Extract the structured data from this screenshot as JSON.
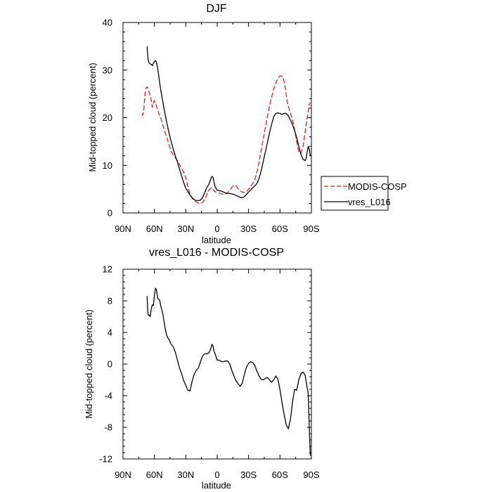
{
  "chart_data": [
    {
      "type": "line",
      "title": "DJF",
      "xlabel": "latitude",
      "ylabel": "Mid-topped cloud (percent)",
      "xlim": [
        90,
        -90
      ],
      "ylim": [
        0,
        40
      ],
      "xticks": [
        90,
        60,
        30,
        0,
        -30,
        -60,
        -90
      ],
      "xtick_labels": [
        "90N",
        "60N",
        "30N",
        "0",
        "30S",
        "60S",
        "90S"
      ],
      "yticks": [
        0,
        10,
        20,
        30,
        40
      ],
      "ytick_labels": [
        "0",
        "10",
        "20",
        "30",
        "40"
      ],
      "legend": [
        {
          "name": "MODIS-COSP",
          "color": "#e0201b",
          "style": "dashed"
        },
        {
          "name": "vres_L016",
          "color": "#000000",
          "style": "solid"
        }
      ],
      "series": [
        {
          "name": "MODIS-COSP",
          "color": "#e0201b",
          "style": "dashed",
          "x": [
            72,
            71,
            70,
            69,
            68,
            67,
            66,
            65,
            64,
            63,
            62,
            61,
            60,
            58,
            56,
            54,
            52,
            50,
            48,
            46,
            44,
            42,
            40,
            38,
            36,
            34,
            32,
            30,
            28,
            26,
            24,
            22,
            20,
            18,
            16,
            14,
            12,
            10,
            8,
            6,
            5,
            4,
            3,
            2,
            0,
            -2,
            -4,
            -6,
            -8,
            -10,
            -12,
            -14,
            -16,
            -18,
            -20,
            -22,
            -24,
            -26,
            -28,
            -30,
            -32,
            -34,
            -36,
            -38,
            -40,
            -42,
            -44,
            -46,
            -48,
            -50,
            -52,
            -54,
            -56,
            -58,
            -60,
            -62,
            -63,
            -64,
            -65,
            -66,
            -67,
            -68,
            -70,
            -72,
            -74,
            -76,
            -78,
            -80,
            -82,
            -84,
            -86,
            -88,
            -89
          ],
          "values": [
            20.8,
            20.5,
            22.0,
            25.0,
            26.3,
            26.5,
            26.0,
            25.3,
            24.6,
            23.8,
            22.2,
            23.2,
            23.6,
            22.5,
            21.0,
            20.0,
            18.5,
            17.0,
            15.8,
            14.3,
            13.0,
            12.2,
            11.6,
            11.0,
            10.2,
            9.3,
            8.6,
            7.4,
            5.5,
            4.0,
            3.1,
            2.6,
            2.3,
            2.1,
            2.0,
            2.2,
            2.8,
            3.8,
            4.8,
            5.3,
            5.3,
            5.0,
            4.7,
            4.5,
            4.3,
            4.1,
            4.0,
            3.9,
            4.0,
            4.3,
            4.8,
            5.4,
            5.8,
            5.7,
            5.1,
            4.6,
            4.4,
            4.3,
            4.5,
            5.0,
            5.6,
            6.2,
            7.0,
            8.6,
            10.7,
            13.1,
            15.5,
            17.9,
            20.3,
            22.5,
            24.3,
            26.0,
            27.3,
            28.3,
            28.8,
            28.7,
            28.3,
            27.5,
            26.3,
            24.8,
            23.2,
            22.4,
            21.0,
            19.5,
            17.5,
            15.0,
            12.8,
            12.5,
            14.0,
            17.0,
            20.0,
            22.8,
            23.2
          ]
        },
        {
          "name": "vres_L016",
          "color": "#000000",
          "style": "solid",
          "x": [
            67,
            66.5,
            66,
            65,
            64,
            63,
            62,
            61,
            60,
            59,
            58,
            57,
            56,
            55,
            54,
            52,
            50,
            48,
            46,
            44,
            42,
            40,
            38,
            36,
            34,
            32,
            30,
            28,
            26,
            24,
            22,
            20,
            18,
            16,
            14,
            12,
            10,
            8,
            6,
            5,
            4,
            3,
            2,
            0,
            -2,
            -4,
            -6,
            -8,
            -10,
            -12,
            -14,
            -16,
            -18,
            -20,
            -22,
            -24,
            -26,
            -28,
            -30,
            -32,
            -34,
            -36,
            -38,
            -40,
            -42,
            -44,
            -46,
            -48,
            -50,
            -52,
            -54,
            -56,
            -58,
            -60,
            -62,
            -64,
            -66,
            -68,
            -70,
            -72,
            -74,
            -76,
            -78,
            -80,
            -82,
            -84,
            -85,
            -86,
            -87,
            -88,
            -89
          ],
          "values": [
            35.0,
            33.5,
            32.2,
            31.5,
            31.3,
            31.2,
            30.9,
            31.4,
            31.8,
            32.0,
            31.6,
            30.6,
            29.0,
            27.4,
            25.9,
            23.4,
            21.0,
            18.8,
            16.8,
            15.0,
            13.4,
            12.0,
            10.7,
            9.2,
            7.8,
            6.4,
            5.2,
            4.5,
            3.8,
            3.2,
            2.8,
            2.6,
            2.6,
            2.7,
            3.2,
            4.2,
            5.3,
            6.0,
            7.2,
            7.7,
            7.5,
            6.5,
            5.5,
            4.8,
            4.7,
            4.6,
            4.4,
            4.2,
            4.1,
            4.1,
            4.0,
            3.9,
            3.7,
            3.5,
            3.3,
            3.2,
            3.4,
            3.9,
            4.4,
            4.8,
            5.3,
            5.7,
            6.2,
            7.2,
            8.8,
            10.8,
            12.8,
            14.8,
            16.8,
            18.6,
            20.2,
            20.9,
            21.0,
            20.9,
            20.7,
            20.9,
            20.9,
            20.4,
            19.5,
            18.5,
            17.3,
            15.8,
            14.0,
            12.3,
            11.3,
            11.0,
            11.5,
            12.8,
            14.0,
            13.4,
            11.9
          ]
        }
      ]
    },
    {
      "type": "line",
      "title": "vres_L016 - MODIS-COSP",
      "xlabel": "latitude",
      "ylabel": "Mid-topped cloud (percent)",
      "xlim": [
        90,
        -90
      ],
      "ylim": [
        -12,
        12
      ],
      "xticks": [
        90,
        60,
        30,
        0,
        -30,
        -60,
        -90
      ],
      "xtick_labels": [
        "90N",
        "60N",
        "30N",
        "0",
        "30S",
        "60S",
        "90S"
      ],
      "yticks": [
        -12,
        -8,
        -4,
        0,
        4,
        8,
        12
      ],
      "ytick_labels": [
        "-12",
        "-8",
        "-4",
        "0",
        "4",
        "8",
        "12"
      ],
      "series": [
        {
          "name": "vres_L016 - MODIS-COSP",
          "color": "#000000",
          "style": "solid",
          "x": [
            67,
            66.5,
            66,
            65,
            64,
            63,
            62,
            61,
            60,
            59,
            58,
            57,
            56,
            55,
            54,
            52,
            50,
            48,
            46,
            44,
            42,
            40,
            38,
            36,
            34,
            32,
            30,
            28,
            26,
            24,
            22,
            20,
            18,
            16,
            14,
            12,
            10,
            8,
            6,
            5,
            4,
            3,
            2,
            0,
            -2,
            -4,
            -6,
            -8,
            -10,
            -12,
            -14,
            -16,
            -18,
            -20,
            -22,
            -24,
            -26,
            -28,
            -30,
            -32,
            -34,
            -36,
            -38,
            -40,
            -42,
            -44,
            -46,
            -48,
            -50,
            -52,
            -54,
            -56,
            -58,
            -60,
            -62,
            -64,
            -66,
            -68,
            -70,
            -72,
            -74,
            -76,
            -78,
            -80,
            -82,
            -84,
            -85,
            -86,
            -87,
            -88,
            -89
          ],
          "values": [
            8.6,
            7.1,
            6.2,
            6.2,
            6.0,
            7.0,
            7.5,
            7.4,
            8.7,
            9.6,
            9.4,
            8.4,
            8.2,
            8.1,
            7.4,
            6.4,
            4.7,
            3.5,
            3.1,
            2.5,
            2.2,
            1.5,
            0.5,
            -0.5,
            -1.2,
            -2.1,
            -2.7,
            -3.3,
            -3.4,
            -2.2,
            -1.3,
            -0.8,
            -0.5,
            0.3,
            1.0,
            1.3,
            1.3,
            1.4,
            2.0,
            2.5,
            2.3,
            1.6,
            1.3,
            0.5,
            0.5,
            0.3,
            0.3,
            0.4,
            0.4,
            0.0,
            -0.8,
            -1.5,
            -2.1,
            -2.5,
            -2.8,
            -2.4,
            -1.3,
            -0.4,
            0.1,
            0.3,
            0.2,
            -0.2,
            -0.9,
            -1.5,
            -1.9,
            -2.0,
            -1.8,
            -1.7,
            -2.0,
            -2.3,
            -2.0,
            -1.5,
            -1.9,
            -3.2,
            -4.9,
            -6.4,
            -7.7,
            -8.2,
            -7.0,
            -4.8,
            -3.2,
            -3.3,
            -2.0,
            -1.2,
            -1.0,
            -1.4,
            -2.2,
            -3.0,
            -3.6,
            -8.0,
            -11.6
          ]
        }
      ]
    }
  ]
}
